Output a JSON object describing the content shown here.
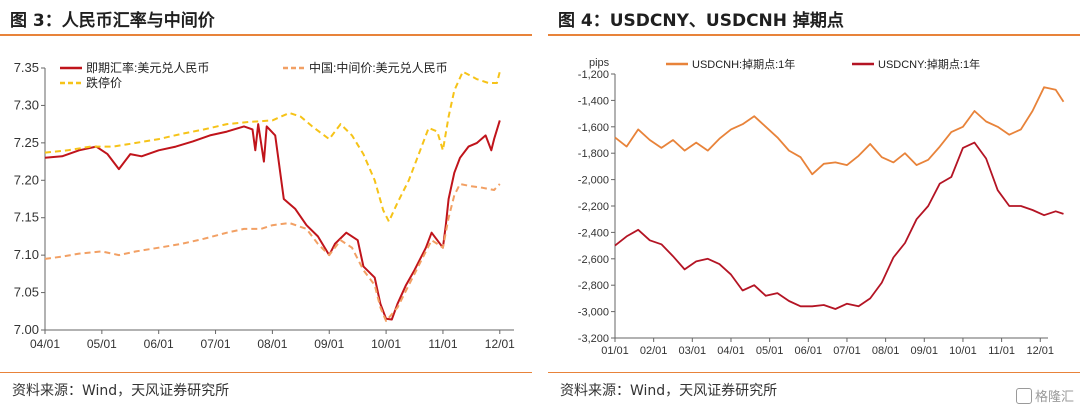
{
  "charts": [
    {
      "title": "图 3：人民币汇率与中间价",
      "source": "资料来源：Wind，天风证券研究所",
      "chart_data": {
        "type": "line",
        "ylim": [
          7.0,
          7.35
        ],
        "yticks": [
          "7.00",
          "7.05",
          "7.10",
          "7.15",
          "7.20",
          "7.25",
          "7.30",
          "7.35"
        ],
        "xtick_labels": [
          "04/01",
          "05/01",
          "06/01",
          "07/01",
          "08/01",
          "09/01",
          "10/01",
          "11/01",
          "12/01"
        ],
        "xlim": [
          0,
          8.25
        ],
        "legend_position": "top-left",
        "series": [
          {
            "name": "即期汇率:美元兑人民币",
            "color": "#c0141b",
            "dash": "none",
            "points": [
              [
                0,
                7.23
              ],
              [
                0.3,
                7.232
              ],
              [
                0.6,
                7.24
              ],
              [
                0.9,
                7.245
              ],
              [
                1.1,
                7.235
              ],
              [
                1.3,
                7.215
              ],
              [
                1.5,
                7.235
              ],
              [
                1.7,
                7.232
              ],
              [
                2.0,
                7.24
              ],
              [
                2.3,
                7.245
              ],
              [
                2.6,
                7.252
              ],
              [
                2.9,
                7.26
              ],
              [
                3.2,
                7.265
              ],
              [
                3.5,
                7.272
              ],
              [
                3.65,
                7.268
              ],
              [
                3.7,
                7.24
              ],
              [
                3.75,
                7.275
              ],
              [
                3.85,
                7.225
              ],
              [
                3.9,
                7.272
              ],
              [
                4.05,
                7.26
              ],
              [
                4.2,
                7.175
              ],
              [
                4.4,
                7.162
              ],
              [
                4.6,
                7.14
              ],
              [
                4.8,
                7.125
              ],
              [
                5.0,
                7.1
              ],
              [
                5.1,
                7.115
              ],
              [
                5.3,
                7.13
              ],
              [
                5.5,
                7.12
              ],
              [
                5.6,
                7.085
              ],
              [
                5.8,
                7.07
              ],
              [
                5.9,
                7.035
              ],
              [
                6.0,
                7.015
              ],
              [
                6.1,
                7.014
              ],
              [
                6.2,
                7.035
              ],
              [
                6.35,
                7.06
              ],
              [
                6.5,
                7.08
              ],
              [
                6.7,
                7.11
              ],
              [
                6.8,
                7.13
              ],
              [
                6.9,
                7.12
              ],
              [
                7.0,
                7.11
              ],
              [
                7.05,
                7.14
              ],
              [
                7.1,
                7.175
              ],
              [
                7.2,
                7.21
              ],
              [
                7.3,
                7.23
              ],
              [
                7.45,
                7.245
              ],
              [
                7.6,
                7.25
              ],
              [
                7.75,
                7.26
              ],
              [
                7.85,
                7.24
              ],
              [
                7.9,
                7.255
              ],
              [
                8.0,
                7.28
              ]
            ]
          },
          {
            "name": "中国:中间价:美元兑人民币",
            "color": "#f2a064",
            "dash": "6,4",
            "points": [
              [
                0,
                7.095
              ],
              [
                0.3,
                7.098
              ],
              [
                0.6,
                7.102
              ],
              [
                1.0,
                7.105
              ],
              [
                1.3,
                7.1
              ],
              [
                1.6,
                7.105
              ],
              [
                2.0,
                7.11
              ],
              [
                2.4,
                7.115
              ],
              [
                2.8,
                7.122
              ],
              [
                3.2,
                7.13
              ],
              [
                3.5,
                7.135
              ],
              [
                3.8,
                7.135
              ],
              [
                4.0,
                7.14
              ],
              [
                4.3,
                7.143
              ],
              [
                4.6,
                7.135
              ],
              [
                4.8,
                7.115
              ],
              [
                5.0,
                7.1
              ],
              [
                5.2,
                7.12
              ],
              [
                5.4,
                7.11
              ],
              [
                5.6,
                7.08
              ],
              [
                5.8,
                7.06
              ],
              [
                5.9,
                7.03
              ],
              [
                6.0,
                7.012
              ],
              [
                6.2,
                7.03
              ],
              [
                6.4,
                7.06
              ],
              [
                6.6,
                7.09
              ],
              [
                6.8,
                7.12
              ],
              [
                6.9,
                7.115
              ],
              [
                7.0,
                7.11
              ],
              [
                7.1,
                7.15
              ],
              [
                7.2,
                7.18
              ],
              [
                7.3,
                7.195
              ],
              [
                7.5,
                7.192
              ],
              [
                7.7,
                7.19
              ],
              [
                7.9,
                7.187
              ],
              [
                8.0,
                7.195
              ]
            ]
          },
          {
            "name": "跌停价",
            "color": "#f6c318",
            "dash": "6,4",
            "points": [
              [
                0,
                7.237
              ],
              [
                0.4,
                7.24
              ],
              [
                0.8,
                7.245
              ],
              [
                1.2,
                7.245
              ],
              [
                1.6,
                7.25
              ],
              [
                2.0,
                7.255
              ],
              [
                2.4,
                7.262
              ],
              [
                2.8,
                7.268
              ],
              [
                3.2,
                7.275
              ],
              [
                3.6,
                7.278
              ],
              [
                4.0,
                7.28
              ],
              [
                4.3,
                7.29
              ],
              [
                4.5,
                7.285
              ],
              [
                4.7,
                7.272
              ],
              [
                5.0,
                7.255
              ],
              [
                5.2,
                7.275
              ],
              [
                5.4,
                7.26
              ],
              [
                5.6,
                7.235
              ],
              [
                5.8,
                7.2
              ],
              [
                5.95,
                7.16
              ],
              [
                6.05,
                7.145
              ],
              [
                6.2,
                7.17
              ],
              [
                6.4,
                7.2
              ],
              [
                6.6,
                7.24
              ],
              [
                6.75,
                7.27
              ],
              [
                6.9,
                7.265
              ],
              [
                7.0,
                7.24
              ],
              [
                7.1,
                7.285
              ],
              [
                7.2,
                7.32
              ],
              [
                7.35,
                7.345
              ],
              [
                7.6,
                7.335
              ],
              [
                7.8,
                7.33
              ],
              [
                7.95,
                7.33
              ],
              [
                8.0,
                7.345
              ]
            ]
          }
        ]
      }
    },
    {
      "title": "图 4：USDCNY、USDCNH 掉期点",
      "source": "资料来源：Wind，天风证券研究所",
      "watermark": "格隆汇",
      "chart_data": {
        "type": "line",
        "yunit": "pips",
        "ylim": [
          -3200,
          -1200
        ],
        "yticks": [
          "-3,200",
          "-3,000",
          "-2,800",
          "-2,600",
          "-2,400",
          "-2,200",
          "-2,000",
          "-1,800",
          "-1,600",
          "-1,400",
          "-1,200"
        ],
        "xtick_labels": [
          "01/01",
          "02/01",
          "03/01",
          "04/01",
          "05/01",
          "06/01",
          "07/01",
          "08/01",
          "09/01",
          "10/01",
          "11/01",
          "12/01"
        ],
        "xlim": [
          0,
          11.2
        ],
        "legend_position": "top",
        "series": [
          {
            "name": "USDCNH:掉期点:1年",
            "color": "#e8833a",
            "dash": "none",
            "points": [
              [
                0,
                -1680
              ],
              [
                0.3,
                -1750
              ],
              [
                0.6,
                -1620
              ],
              [
                0.9,
                -1700
              ],
              [
                1.2,
                -1760
              ],
              [
                1.5,
                -1700
              ],
              [
                1.8,
                -1780
              ],
              [
                2.1,
                -1720
              ],
              [
                2.4,
                -1780
              ],
              [
                2.7,
                -1690
              ],
              [
                3.0,
                -1620
              ],
              [
                3.3,
                -1580
              ],
              [
                3.6,
                -1520
              ],
              [
                3.9,
                -1600
              ],
              [
                4.2,
                -1680
              ],
              [
                4.5,
                -1780
              ],
              [
                4.8,
                -1830
              ],
              [
                5.1,
                -1960
              ],
              [
                5.4,
                -1880
              ],
              [
                5.7,
                -1870
              ],
              [
                6.0,
                -1890
              ],
              [
                6.3,
                -1820
              ],
              [
                6.6,
                -1730
              ],
              [
                6.9,
                -1830
              ],
              [
                7.2,
                -1870
              ],
              [
                7.5,
                -1800
              ],
              [
                7.8,
                -1890
              ],
              [
                8.1,
                -1850
              ],
              [
                8.4,
                -1750
              ],
              [
                8.7,
                -1640
              ],
              [
                9.0,
                -1600
              ],
              [
                9.3,
                -1480
              ],
              [
                9.6,
                -1560
              ],
              [
                9.9,
                -1600
              ],
              [
                10.2,
                -1660
              ],
              [
                10.5,
                -1620
              ],
              [
                10.8,
                -1480
              ],
              [
                11.1,
                -1300
              ],
              [
                11.4,
                -1320
              ],
              [
                11.6,
                -1410
              ]
            ]
          },
          {
            "name": "USDCNY:掉期点:1年",
            "color": "#b41424",
            "dash": "none",
            "points": [
              [
                0,
                -2500
              ],
              [
                0.3,
                -2430
              ],
              [
                0.6,
                -2380
              ],
              [
                0.9,
                -2460
              ],
              [
                1.2,
                -2490
              ],
              [
                1.5,
                -2580
              ],
              [
                1.8,
                -2680
              ],
              [
                2.1,
                -2620
              ],
              [
                2.4,
                -2600
              ],
              [
                2.7,
                -2640
              ],
              [
                3.0,
                -2720
              ],
              [
                3.3,
                -2840
              ],
              [
                3.6,
                -2800
              ],
              [
                3.9,
                -2880
              ],
              [
                4.2,
                -2860
              ],
              [
                4.5,
                -2920
              ],
              [
                4.8,
                -2960
              ],
              [
                5.1,
                -2960
              ],
              [
                5.4,
                -2950
              ],
              [
                5.7,
                -2980
              ],
              [
                6.0,
                -2940
              ],
              [
                6.3,
                -2960
              ],
              [
                6.6,
                -2900
              ],
              [
                6.9,
                -2780
              ],
              [
                7.2,
                -2590
              ],
              [
                7.5,
                -2480
              ],
              [
                7.8,
                -2300
              ],
              [
                8.1,
                -2200
              ],
              [
                8.4,
                -2030
              ],
              [
                8.7,
                -1980
              ],
              [
                9.0,
                -1760
              ],
              [
                9.3,
                -1720
              ],
              [
                9.6,
                -1840
              ],
              [
                9.9,
                -2080
              ],
              [
                10.2,
                -2200
              ],
              [
                10.5,
                -2200
              ],
              [
                10.8,
                -2230
              ],
              [
                11.1,
                -2270
              ],
              [
                11.4,
                -2240
              ],
              [
                11.6,
                -2260
              ]
            ]
          }
        ]
      }
    }
  ]
}
